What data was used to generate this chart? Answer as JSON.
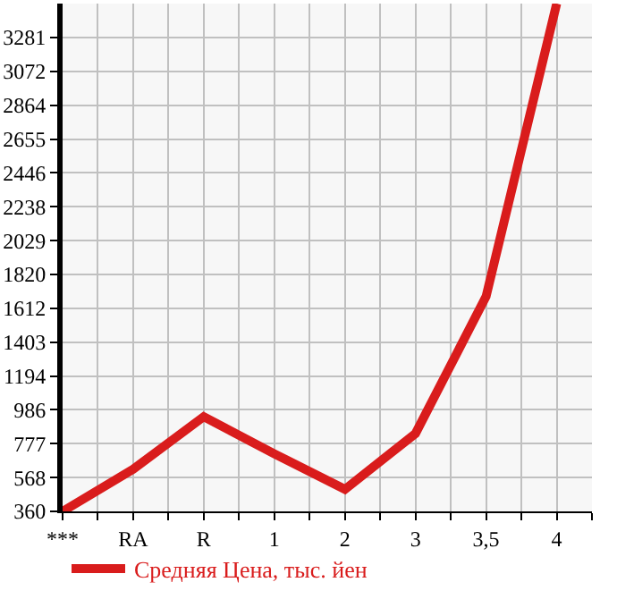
{
  "chart_data": {
    "type": "line",
    "categories": [
      "***",
      "RA",
      "R",
      "1",
      "2",
      "3",
      "3,5",
      "4"
    ],
    "series": [
      {
        "name": "Средняя Цена, тыс. йен",
        "color": "#d91c1c",
        "values": [
          360,
          620,
          944,
          715,
          496,
          840,
          1685,
          3490
        ]
      }
    ],
    "ylim": [
      360,
      3490
    ],
    "yticks": [
      360,
      568,
      777,
      986,
      1194,
      1403,
      1612,
      1820,
      2029,
      2238,
      2446,
      2655,
      2864,
      3072,
      3281
    ],
    "grid": true,
    "legend": "bottom",
    "marker": "none",
    "line_style": "solid"
  }
}
